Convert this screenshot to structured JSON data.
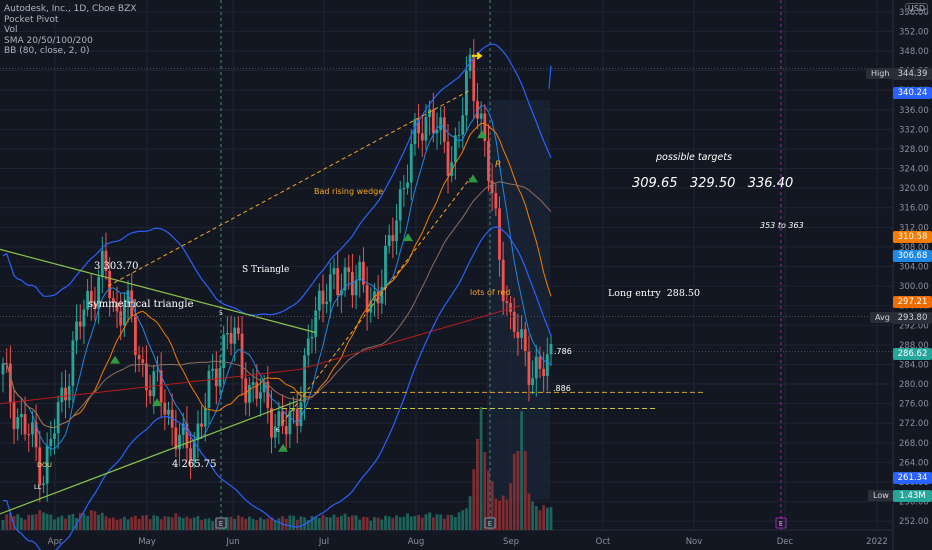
{
  "legend": {
    "title": "Autodesk, Inc., 1D, Cboe BZX",
    "lines": [
      "Pocket Pivot",
      "Vol",
      "SMA 20/50/100/200",
      "BB (80, close, 2, 0)"
    ]
  },
  "currency": "USD",
  "chart_data": {
    "type": "candlestick",
    "x_ticks": [
      "Apr",
      "May",
      "Jun",
      "Jul",
      "Aug",
      "Sep",
      "Oct",
      "Nov",
      "Dec",
      "2022"
    ],
    "y_ticks": [
      252,
      256,
      260,
      264,
      268,
      272,
      276,
      280,
      284,
      288,
      292,
      296,
      300,
      304,
      308,
      312,
      316,
      320,
      324,
      328,
      332,
      336,
      340,
      344,
      348,
      352,
      356
    ],
    "ylim": [
      250,
      358
    ],
    "grid": true,
    "price_path": [
      282,
      276,
      271,
      268,
      262,
      270,
      279,
      288,
      295,
      300,
      303.7,
      294,
      298,
      288,
      282,
      279,
      276,
      270,
      265.75,
      270,
      276,
      283,
      291,
      288,
      280,
      278,
      276,
      272,
      270,
      276,
      286,
      296,
      302,
      298,
      304,
      301,
      296,
      300,
      306,
      318,
      325,
      332,
      336,
      330,
      326,
      332,
      344.39,
      336,
      320,
      306,
      292,
      288.5,
      284,
      281,
      286.62
    ],
    "volume_path": [
      0.24,
      0.32,
      0.2,
      0.3,
      0.35,
      0.22,
      0.25,
      0.28,
      0.3,
      0.35,
      0.27,
      0.2,
      0.22,
      0.24,
      0.26,
      0.25,
      0.23,
      0.28,
      0.22,
      0.24,
      0.2,
      0.2,
      0.22,
      0.25,
      0.23,
      0.2,
      0.22,
      0.2,
      0.26,
      0.24,
      0.22,
      0.25,
      0.25,
      0.26,
      0.28,
      0.24,
      0.22,
      0.22,
      0.25,
      0.24,
      0.28,
      0.25,
      0.3,
      0.27,
      0.26,
      0.3,
      0.52,
      2.2,
      0.9,
      0.5,
      0.8,
      2.2,
      0.5,
      0.4,
      0.45
    ],
    "price_tags": [
      {
        "value": 344.39,
        "label": "344.39",
        "color": "#2a2e39",
        "side": "High"
      },
      {
        "value": 340.24,
        "label": "340.24",
        "color": "#2962ff"
      },
      {
        "value": 310.58,
        "label": "310.58",
        "color": "#f57c00"
      },
      {
        "value": 306.68,
        "label": "306.68",
        "color": "#1e88e5"
      },
      {
        "value": 297.21,
        "label": "297.21",
        "color": "#ef6c00"
      },
      {
        "value": 293.8,
        "label": "293.80",
        "color": "#2a2e39",
        "side": "Avg"
      },
      {
        "value": 286.62,
        "label": "286.62",
        "color": "#26a69a"
      },
      {
        "value": 261.34,
        "label": "261.34",
        "color": "#2962ff"
      },
      {
        "value": 255.2,
        "label": "1.43M",
        "color": "#26a69a",
        "side": "Low"
      }
    ],
    "annotations": [
      "3  303.70",
      "symmetrical triangle",
      "S Triangle",
      "4  265.75",
      "Bad rising wedge",
      "lots of red",
      "R",
      "possible targets",
      "309.65   329.50   336.40",
      "353 to 363",
      "Long entry  288.50",
      ".786",
      ".886",
      "5",
      "6",
      "DOU",
      "LL"
    ]
  },
  "markers": [
    "E",
    "E",
    "E"
  ]
}
